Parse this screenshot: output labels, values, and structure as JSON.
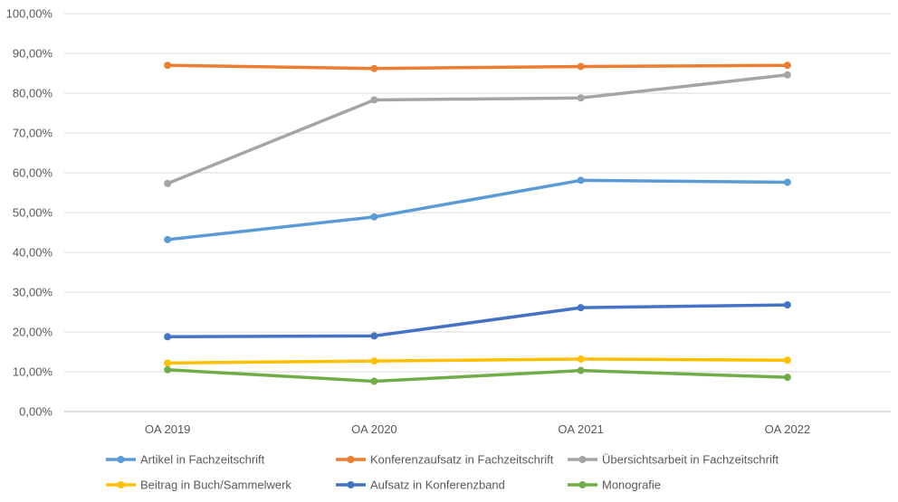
{
  "chart_data": {
    "type": "line",
    "title": "",
    "xlabel": "",
    "ylabel": "",
    "categories": [
      "OA 2019",
      "OA 2020",
      "OA 2021",
      "OA 2022"
    ],
    "ylim": [
      0,
      100
    ],
    "y_ticks": [
      "0,00%",
      "10,00%",
      "20,00%",
      "30,00%",
      "40,00%",
      "50,00%",
      "60,00%",
      "70,00%",
      "80,00%",
      "90,00%",
      "100,00%"
    ],
    "grid": true,
    "legend_position": "bottom",
    "series": [
      {
        "name": "Artikel in Fachzeitschrift",
        "color": "#5B9BD5",
        "values": [
          43.2,
          48.9,
          58.1,
          57.6
        ]
      },
      {
        "name": "Konferenzaufsatz in Fachzeitschrift",
        "color": "#ED7D31",
        "values": [
          87.0,
          86.2,
          86.7,
          87.0
        ]
      },
      {
        "name": "Übersichtsarbeit in Fachzeitschrift",
        "color": "#A5A5A5",
        "values": [
          57.3,
          78.3,
          78.8,
          84.6
        ]
      },
      {
        "name": "Beitrag in Buch/Sammelwerk",
        "color": "#FFC000",
        "values": [
          12.2,
          12.7,
          13.2,
          12.9
        ]
      },
      {
        "name": "Aufsatz in Konferenzband",
        "color": "#4472C4",
        "values": [
          18.8,
          19.0,
          26.1,
          26.8
        ]
      },
      {
        "name": "Monografie",
        "color": "#70AD47",
        "values": [
          10.5,
          7.6,
          10.3,
          8.6
        ]
      }
    ]
  }
}
